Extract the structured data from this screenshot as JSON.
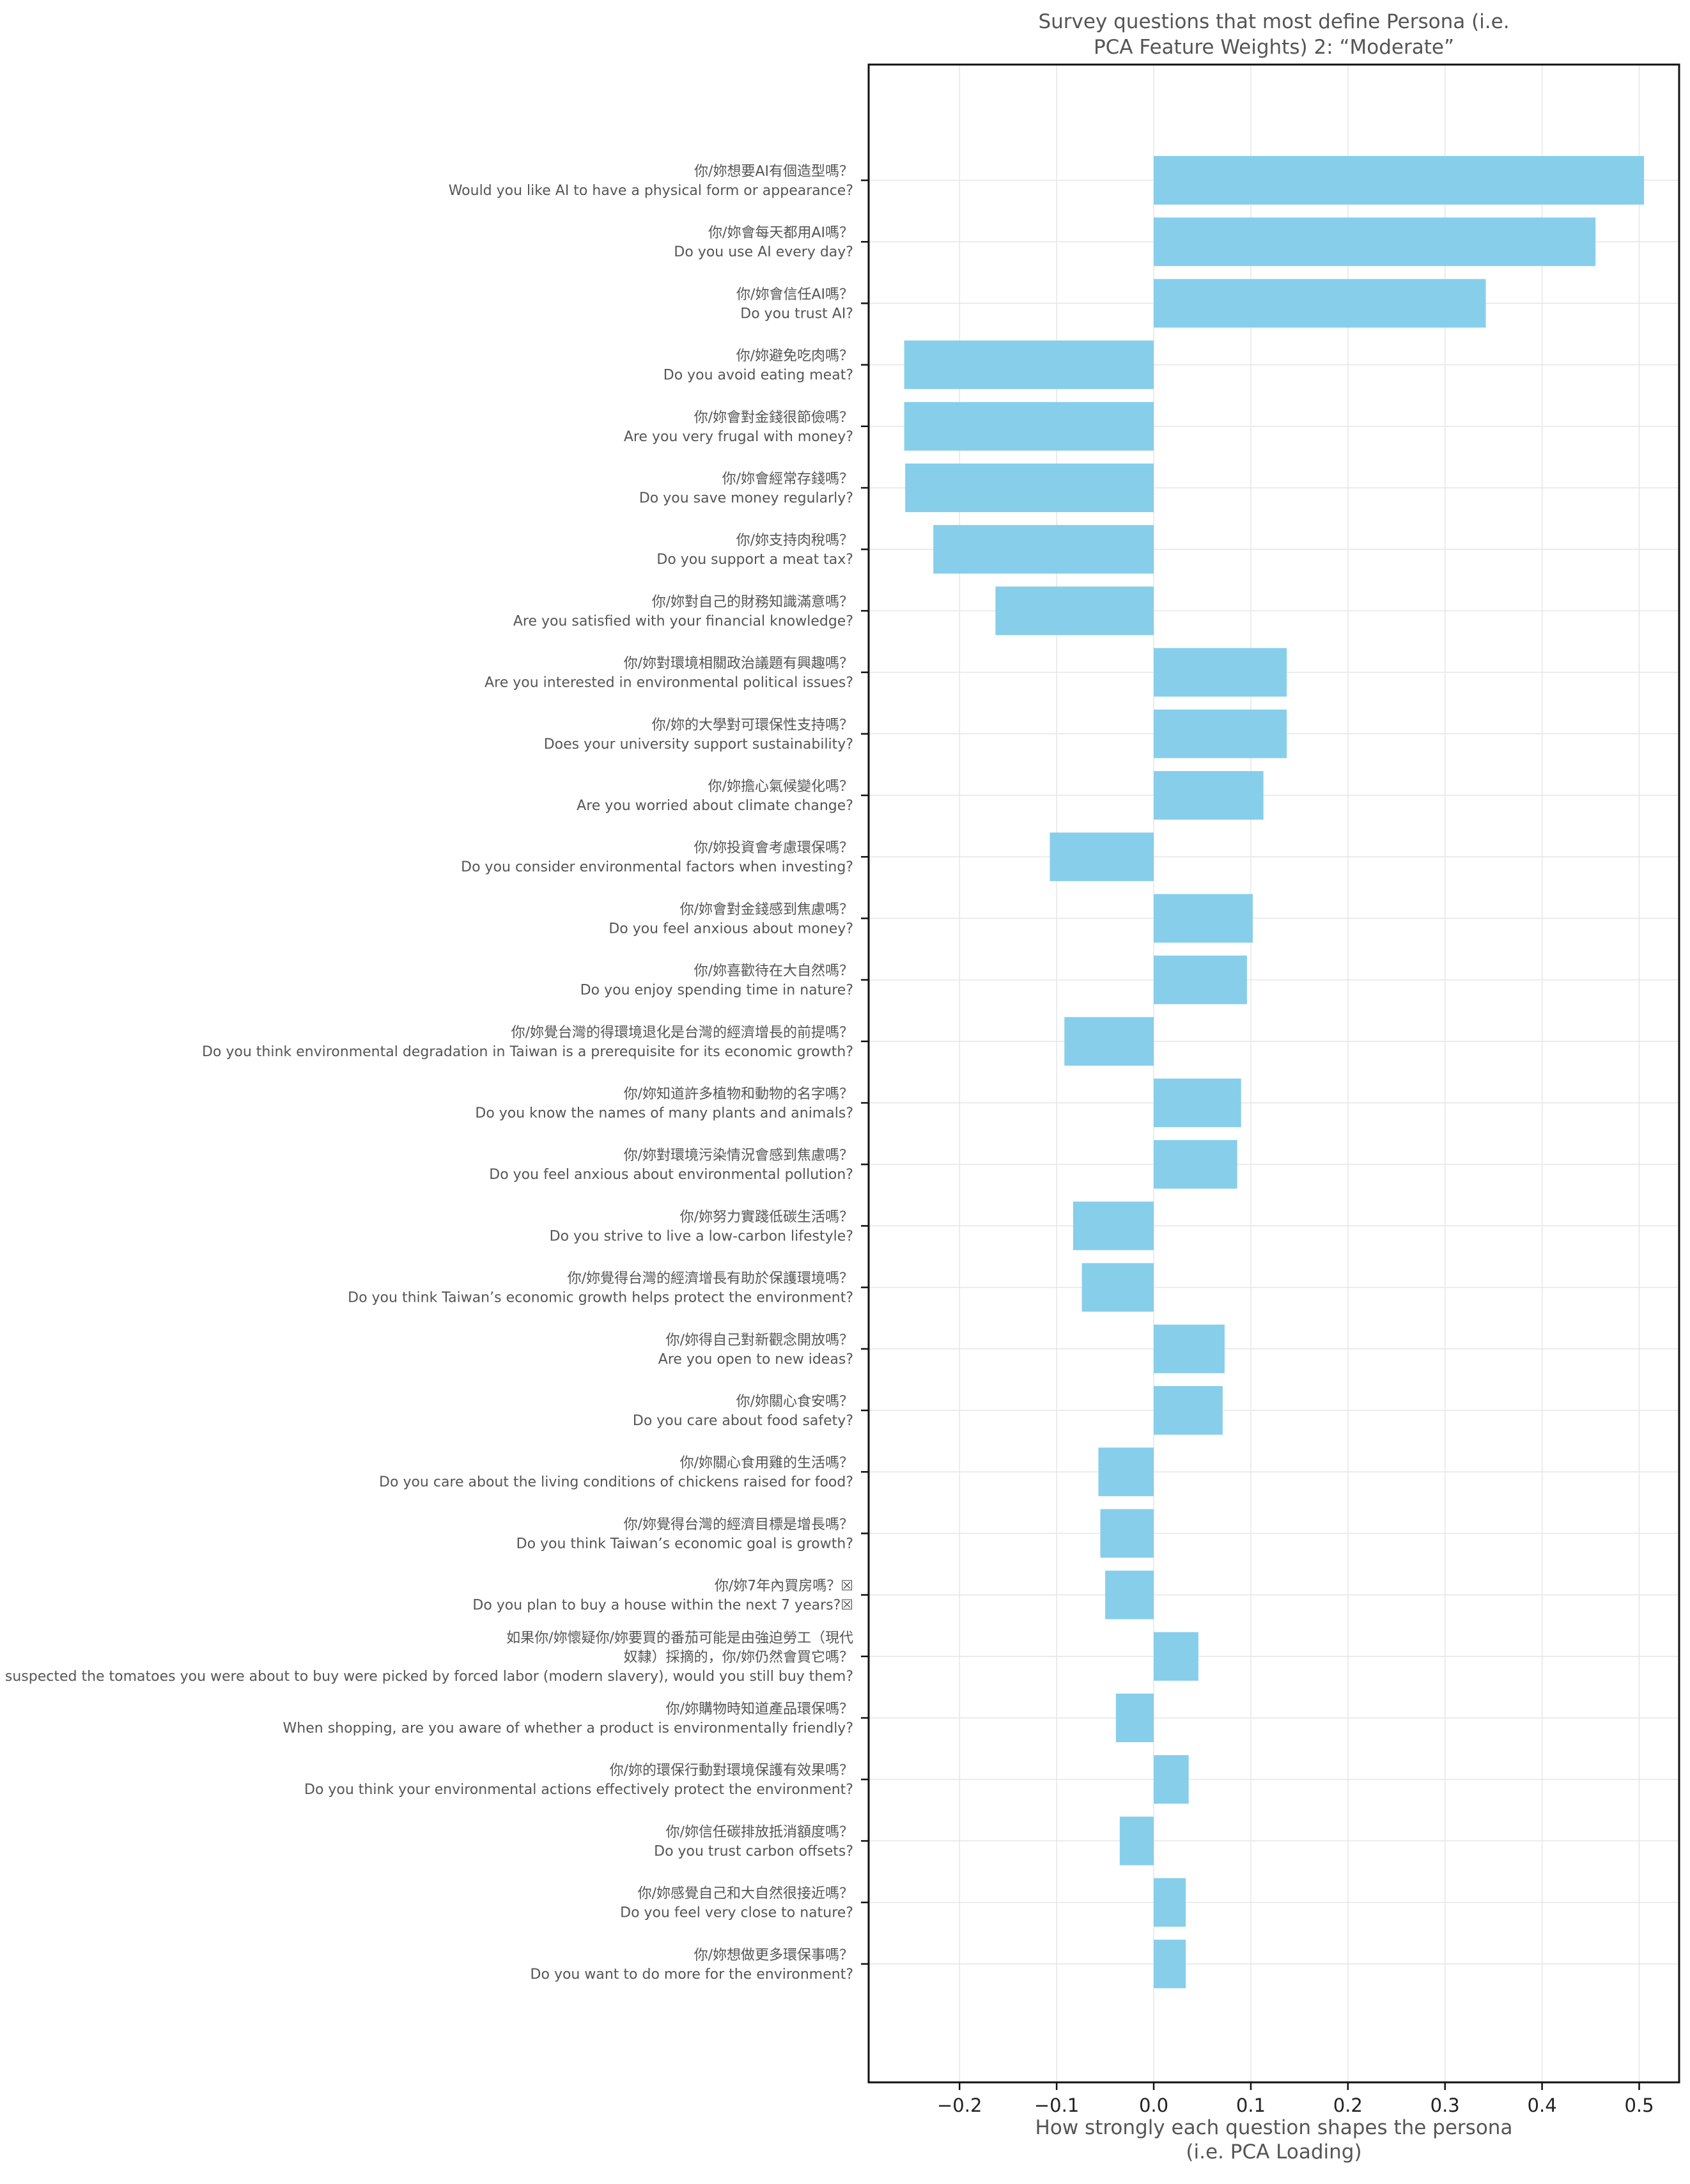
{
  "chart_data": {
    "type": "bar",
    "orientation": "horizontal",
    "title": "Survey questions that most define Persona (i.e.\nPCA Feature Weights) 2:  “Moderate”",
    "xlabel": "How strongly each question shapes the persona\n(i.e. PCA Loading)",
    "ylabel": "",
    "xlim": [
      -0.29,
      0.55
    ],
    "xticks": [
      -0.2,
      -0.1,
      0.0,
      0.1,
      0.2,
      0.3,
      0.4,
      0.5
    ],
    "xtick_labels": [
      "−0.2",
      "−0.1",
      "0.0",
      "0.1",
      "0.2",
      "0.3",
      "0.4",
      "0.5"
    ],
    "grid": true,
    "bar_color": "#87ceeb",
    "categories": [
      "你/妳想要AI有個造型嗎？\nWould you like AI to have a physical form or appearance?",
      "你/妳會每天都用AI嗎？\nDo you use AI every day?",
      "你/妳會信任AI嗎？\nDo you trust AI?",
      "你/妳避免吃肉嗎？\nDo you avoid eating meat?",
      "你/妳會對金錢很節儉嗎？\nAre you very frugal with money?",
      "你/妳會經常存錢嗎？\nDo you save money regularly?",
      "你/妳支持肉稅嗎？\nDo you support a meat tax?",
      "你/妳對自己的財務知識滿意嗎？\nAre you satisfied with your financial knowledge?",
      "你/妳對環境相關政治議題有興趣嗎？\nAre you interested in environmental political issues?",
      "你/妳的大學對可環保性支持嗎？\nDoes your university support sustainability?",
      "你/妳擔心氣候變化嗎？\nAre you worried about climate change?",
      "你/妳投資會考慮環保嗎？\nDo you consider environmental factors when investing?",
      "你/妳會對金錢感到焦慮嗎？\nDo you feel anxious about money?",
      "你/妳喜歡待在大自然嗎？\nDo you enjoy spending time in nature?",
      "你/妳覺台灣的得環境退化是台灣的經濟增長的前提嗎？\nDo you think environmental degradation in Taiwan is a prerequisite for its economic growth?",
      "你/妳知道許多植物和動物的名字嗎？\nDo you know the names of many plants and animals?",
      "你/妳對環境污染情況會感到焦慮嗎？\nDo you feel anxious about environmental pollution?",
      "你/妳努力實踐低碳生活嗎？\nDo you strive to live a low-carbon lifestyle?",
      "你/妳覺得台灣的經濟增長有助於保護環境嗎？\nDo you think Taiwan’s economic growth helps protect the environment?",
      "你/妳得自己對新觀念開放嗎？\nAre you open to new ideas?",
      "你/妳關心食安嗎？\nDo you care about food safety?",
      "你/妳關心食用雞的生活嗎？\nDo you care about the living conditions of chickens raised for food?",
      "你/妳覺得台灣的經濟目標是增長嗎？\nDo you think Taiwan’s economic goal is growth?",
      "你/妳7年內買房嗎？☒\nDo you plan to buy a house within the next 7 years?☒",
      "如果你/妳懷疑你/妳要買的番茄可能是由強迫勞工（現代\n奴隸）採摘的，你/妳仍然會買它嗎？\nIf you suspected the tomatoes you were about to buy were picked by forced labor (modern slavery), would you still buy them?",
      "你/妳購物時知道產品環保嗎？\nWhen shopping, are you aware of whether a product is environmentally friendly?",
      "你/妳的環保行動對環境保護有效果嗎？\nDo you think your environmental actions effectively protect the environment?",
      "你/妳信任碳排放抵消額度嗎？\nDo you trust carbon offsets?",
      "你/妳感覺自己和大自然很接近嗎？\nDo you feel very close to nature?",
      "你/妳想做更多環保事嗎？\nDo you want to do more for the environment?"
    ],
    "values": [
      0.505,
      0.455,
      0.342,
      -0.257,
      -0.257,
      -0.256,
      -0.227,
      -0.163,
      0.137,
      0.137,
      0.113,
      -0.107,
      0.102,
      0.096,
      -0.092,
      0.09,
      0.086,
      -0.083,
      -0.074,
      0.073,
      0.071,
      -0.057,
      -0.055,
      -0.05,
      0.046,
      -0.039,
      0.036,
      -0.035,
      0.033,
      0.033
    ]
  }
}
